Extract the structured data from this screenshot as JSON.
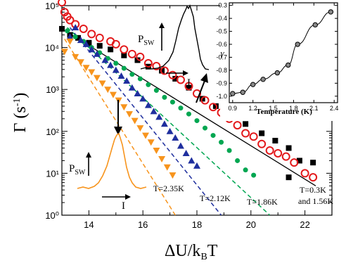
{
  "chart_data": [
    {
      "type": "scatter",
      "y_scale": "log",
      "xlim": [
        13,
        23
      ],
      "ylim": [
        1,
        100000
      ],
      "x_ticks": [
        "14",
        "16",
        "18",
        "20",
        "22"
      ],
      "y_ticks": [
        "10⁰",
        "10¹",
        "10²",
        "10³",
        "10⁴",
        "10⁵"
      ],
      "xlabel": "ΔU/k",
      "xlabel_sub": "B",
      "xlabel_tail": "T",
      "ylabel": "Γ (s",
      "ylabel_sup": "-1",
      "ylabel_tail": ")",
      "series": [
        {
          "name": "T=0.3K",
          "marker": "filled-square",
          "color": "#000000",
          "points": [
            [
              13.0,
              28000
            ],
            [
              13.3,
              20000
            ],
            [
              13.6,
              17000
            ],
            [
              14.0,
              13000
            ],
            [
              14.4,
              11000
            ],
            [
              14.8,
              9000
            ],
            [
              15.3,
              6500
            ],
            [
              15.8,
              5000
            ],
            [
              16.2,
              3500
            ],
            [
              16.7,
              2800
            ],
            [
              17.2,
              1800
            ],
            [
              17.7,
              1100
            ],
            [
              18.2,
              600
            ],
            [
              18.7,
              400
            ],
            [
              19.2,
              220
            ],
            [
              19.8,
              150
            ],
            [
              20.4,
              90
            ],
            [
              20.9,
              60
            ],
            [
              21.4,
              40
            ],
            [
              21.8,
              20
            ],
            [
              22.3,
              18
            ],
            [
              21.4,
              8
            ]
          ]
        },
        {
          "name": "1.56K",
          "marker": "open-circle",
          "color": "#e31a1c",
          "points": [
            [
              13.0,
              120000
            ],
            [
              13.1,
              70000
            ],
            [
              13.2,
              55000
            ],
            [
              13.3,
              45000
            ],
            [
              13.5,
              36000
            ],
            [
              13.8,
              28000
            ],
            [
              14.1,
              21000
            ],
            [
              14.4,
              17000
            ],
            [
              14.8,
              14000
            ],
            [
              15.0,
              12000
            ],
            [
              15.3,
              9000
            ],
            [
              15.6,
              7000
            ],
            [
              15.9,
              6000
            ],
            [
              16.2,
              4200
            ],
            [
              16.5,
              3600
            ],
            [
              16.8,
              2800
            ],
            [
              17.1,
              2200
            ],
            [
              17.4,
              1700
            ],
            [
              17.7,
              1200
            ],
            [
              18.0,
              800
            ],
            [
              18.3,
              550
            ],
            [
              18.6,
              380
            ],
            [
              18.9,
              280
            ],
            [
              19.2,
              200
            ],
            [
              19.5,
              140
            ],
            [
              19.8,
              90
            ],
            [
              20.1,
              75
            ],
            [
              20.4,
              50
            ],
            [
              20.7,
              35
            ],
            [
              21.0,
              30
            ],
            [
              21.3,
              25
            ],
            [
              21.6,
              18
            ],
            [
              22.0,
              10
            ],
            [
              22.3,
              8
            ]
          ]
        },
        {
          "name": "T=1.86K",
          "marker": "filled-circle",
          "color": "#00a651",
          "points": [
            [
              13.2,
              25000
            ],
            [
              13.5,
              18000
            ],
            [
              13.8,
              14000
            ],
            [
              14.1,
              10000
            ],
            [
              14.4,
              7500
            ],
            [
              14.7,
              5500
            ],
            [
              15.0,
              4200
            ],
            [
              15.3,
              3200
            ],
            [
              15.6,
              2300
            ],
            [
              15.9,
              1800
            ],
            [
              16.2,
              1300
            ],
            [
              16.5,
              950
            ],
            [
              16.8,
              650
            ],
            [
              17.1,
              500
            ],
            [
              17.4,
              360
            ],
            [
              17.7,
              260
            ],
            [
              18.0,
              180
            ],
            [
              18.3,
              120
            ],
            [
              18.6,
              80
            ],
            [
              18.9,
              55
            ],
            [
              19.2,
              35
            ],
            [
              19.5,
              20
            ],
            [
              19.8,
              12
            ],
            [
              20.1,
              9
            ]
          ]
        },
        {
          "name": "T=2.12K",
          "marker": "filled-triangle-up",
          "color": "#1f2f9e",
          "points": [
            [
              13.3,
              18000
            ],
            [
              13.5,
              30000
            ],
            [
              13.7,
              15000
            ],
            [
              13.9,
              12000
            ],
            [
              14.1,
              9000
            ],
            [
              14.3,
              7000
            ],
            [
              14.6,
              5000
            ],
            [
              14.8,
              3800
            ],
            [
              15.0,
              2900
            ],
            [
              15.2,
              2100
            ],
            [
              15.4,
              1600
            ],
            [
              15.6,
              1100
            ],
            [
              15.8,
              800
            ],
            [
              16.0,
              600
            ],
            [
              16.2,
              420
            ],
            [
              16.4,
              300
            ],
            [
              16.6,
              220
            ],
            [
              16.8,
              150
            ],
            [
              17.0,
              100
            ],
            [
              17.2,
              70
            ],
            [
              17.4,
              45
            ],
            [
              17.6,
              30
            ],
            [
              17.8,
              20
            ],
            [
              18.0,
              15
            ]
          ]
        },
        {
          "name": "T=2.35K",
          "marker": "filled-triangle-down",
          "color": "#f7941d",
          "points": [
            [
              13.1,
              8000
            ],
            [
              13.3,
              14000
            ],
            [
              13.5,
              6000
            ],
            [
              13.7,
              4500
            ],
            [
              13.9,
              3300
            ],
            [
              14.1,
              2600
            ],
            [
              14.3,
              1900
            ],
            [
              14.5,
              1400
            ],
            [
              14.7,
              1000
            ],
            [
              14.9,
              750
            ],
            [
              15.1,
              550
            ],
            [
              15.3,
              380
            ],
            [
              15.5,
              260
            ],
            [
              15.7,
              180
            ],
            [
              15.9,
              120
            ],
            [
              16.1,
              80
            ],
            [
              16.3,
              55
            ],
            [
              16.5,
              35
            ],
            [
              16.7,
              22
            ],
            [
              16.9,
              14
            ],
            [
              17.1,
              9
            ]
          ]
        }
      ],
      "fit_lines": [
        {
          "color": "#000000",
          "style": "solid",
          "x": [
            13.0,
            22.4
          ],
          "y": [
            28000,
            5
          ]
        },
        {
          "color": "#00a651",
          "style": "dashed",
          "x": [
            13.2,
            20.7
          ],
          "y": [
            30000,
            1
          ]
        },
        {
          "color": "#1f2f9e",
          "style": "dashed",
          "x": [
            13.3,
            18.9
          ],
          "y": [
            30000,
            1
          ]
        },
        {
          "color": "#f7941d",
          "style": "dashed",
          "x": [
            13.1,
            17.2
          ],
          "y": [
            16000,
            1
          ]
        }
      ],
      "annotations": [
        {
          "text": "T=2.35K"
        },
        {
          "text": "T=2.12K"
        },
        {
          "text": "T=1.86K"
        },
        {
          "text": "T=0.3K"
        },
        {
          "text": "and 1.56K"
        }
      ],
      "inset_labels": {
        "psw_main": "P",
        "psw_sub": "SW",
        "i_label": "I"
      }
    },
    {
      "type": "line",
      "xlabel": "Temperature (K)",
      "ylabel": "γ",
      "xlim": [
        0.85,
        2.45
      ],
      "ylim": [
        -1.05,
        -0.28
      ],
      "x_ticks": [
        "0.9",
        "1.2",
        "1.5",
        "1.8",
        "2.1",
        "2.4"
      ],
      "y_ticks": [
        "-0.3",
        "-0.4",
        "-0.5",
        "-0.6",
        "-0.7",
        "-0.8",
        "-0.9",
        "-1.0"
      ],
      "x": [
        0.9,
        1.05,
        1.2,
        1.35,
        1.56,
        1.72,
        1.86,
        2.12,
        2.35
      ],
      "y": [
        -0.98,
        -0.97,
        -0.91,
        -0.87,
        -0.82,
        -0.76,
        -0.6,
        -0.45,
        -0.35
      ],
      "curve_color": "#000000",
      "marker_color": "#888888"
    }
  ]
}
